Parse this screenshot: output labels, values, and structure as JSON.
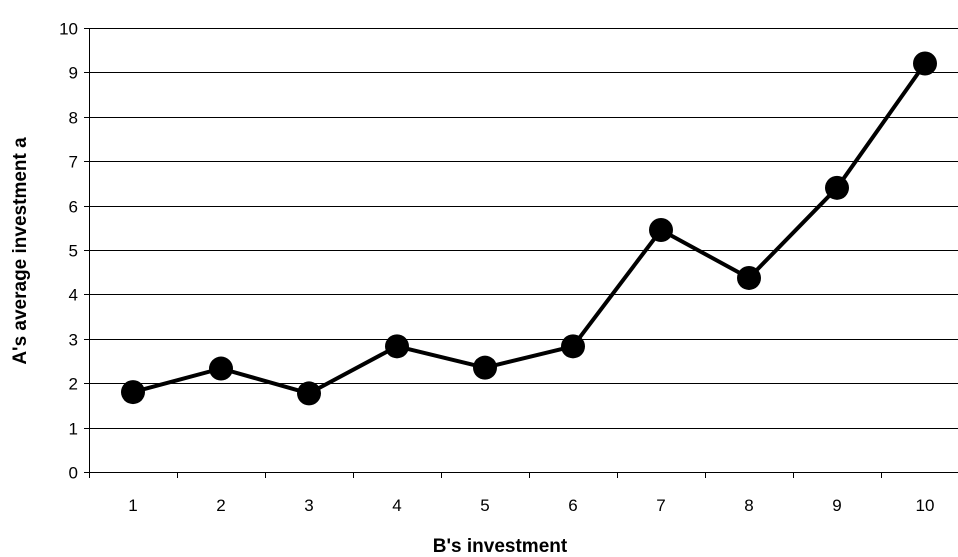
{
  "chart_data": {
    "type": "line",
    "title": "",
    "xlabel": "B's investment",
    "ylabel": "A's average investment a",
    "x": [
      1,
      2,
      3,
      4,
      5,
      6,
      7,
      8,
      9,
      10
    ],
    "series": [
      {
        "values": [
          1.8,
          2.33,
          1.77,
          2.83,
          2.35,
          2.83,
          5.45,
          4.37,
          6.4,
          9.2
        ]
      }
    ],
    "ylim": [
      0,
      10
    ],
    "yticks": [
      0,
      1,
      2,
      3,
      4,
      5,
      6,
      7,
      8,
      9,
      10
    ],
    "grid": "horizontal",
    "legend": "none",
    "colors": {
      "line": "#000000",
      "marker": "#000000",
      "grid": "#000000"
    }
  }
}
